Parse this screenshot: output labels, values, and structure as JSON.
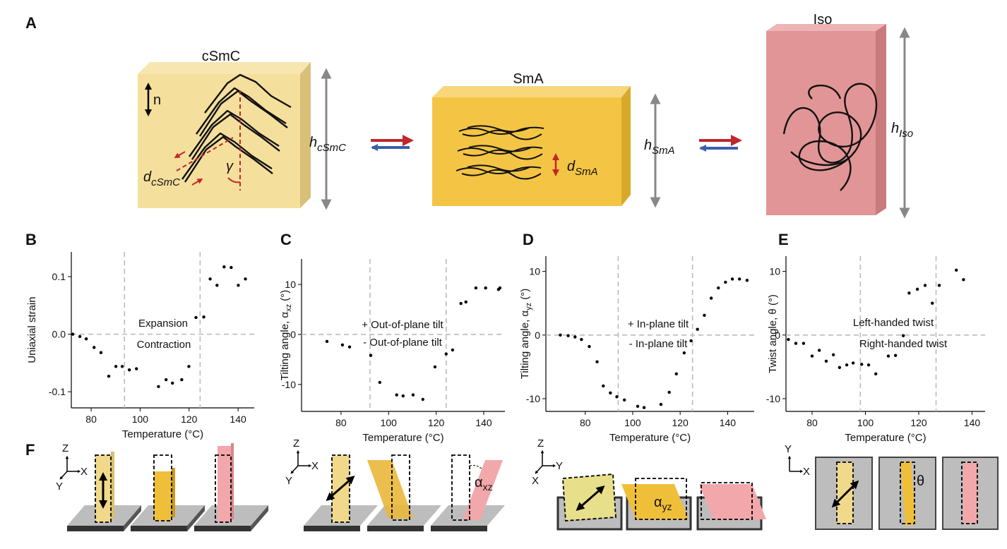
{
  "panel_labels": [
    "A",
    "B",
    "C",
    "D",
    "E",
    "F"
  ],
  "diagram": {
    "csmc": {
      "title": "cSmC",
      "n": "n",
      "gamma": "γ",
      "d": {
        "main": "d",
        "sub": "cSmC"
      },
      "h": {
        "main": "h",
        "sub": "cSmC"
      }
    },
    "sma": {
      "title": "SmA",
      "d": {
        "main": "d",
        "sub": "SmA"
      },
      "h": {
        "main": "h",
        "sub": "SmA"
      }
    },
    "iso": {
      "title": "Iso",
      "h": {
        "main": "h",
        "sub": "Iso"
      }
    }
  },
  "schematics": {
    "f1_axes": [
      "Z",
      "X",
      "Y"
    ],
    "f2_axes": [
      "Z",
      "X",
      "Y"
    ],
    "alpha_xz": {
      "main": "α",
      "sub": "xz"
    },
    "f3_axes": [
      "Z",
      "Y",
      "X"
    ],
    "alpha_yz": {
      "main": "α",
      "sub": "yz"
    },
    "f4_axes": [
      "Y",
      "X"
    ],
    "theta": "θ"
  },
  "chart_data": [
    {
      "type": "scatter",
      "xlabel": "Temperature (°C)",
      "ylabel": {
        "main": "Uniaxial strain"
      },
      "x": [
        72.5,
        75.4,
        78.0,
        81.2,
        84.0,
        87.2,
        90.1,
        92.7,
        95.6,
        98.5,
        107.5,
        110.6,
        113.2,
        117.0,
        119.9,
        122.8,
        126.0,
        128.6,
        131.4,
        134.3,
        137.2,
        140.1,
        143.0
      ],
      "values": [
        0.0,
        -0.004,
        -0.008,
        -0.023,
        -0.032,
        -0.073,
        -0.056,
        -0.056,
        -0.062,
        -0.06,
        -0.091,
        -0.079,
        -0.085,
        -0.079,
        -0.056,
        0.029,
        0.03,
        0.096,
        0.085,
        0.117,
        0.116,
        0.085,
        0.096
      ],
      "xlim": [
        71.9,
        146.6
      ],
      "ylim": [
        -0.128,
        0.143
      ],
      "xticks": [
        80,
        100,
        120,
        140
      ],
      "yticks": [
        -0.1,
        {
          "value": 0,
          "label": "0.0"
        },
        0.1
      ],
      "vlines": [
        93.6,
        124.5
      ],
      "hlines": [
        0
      ],
      "annotations": [
        "Expansion",
        "Contraction"
      ],
      "color": "#000000"
    },
    {
      "type": "scatter",
      "xlabel": "Temperature (°C)",
      "ylabel": {
        "main": "Tilting angle, α",
        "sub": "xz",
        "end": " (°)"
      },
      "x": [
        74.1,
        80.6,
        83.6,
        92.5,
        96.3,
        103.4,
        106.1,
        110.3,
        114.4,
        119.5,
        124.2,
        126.9,
        130.4,
        132.5,
        136.7,
        140.8,
        146.2,
        146.8
      ],
      "values": [
        -1.4,
        -2.1,
        -2.5,
        -4.2,
        -9.6,
        -12.1,
        -12.3,
        -12.1,
        -13.0,
        -6.5,
        -3.9,
        -3.1,
        6.2,
        6.5,
        9.3,
        9.3,
        9.0,
        9.3
      ],
      "xlim": [
        63.4,
        148.9
      ],
      "ylim": [
        -15.4,
        15.1
      ],
      "xticks": [
        80,
        100,
        120,
        140
      ],
      "yticks": [
        -10,
        0,
        10
      ],
      "vlines": [
        92.2,
        124.2
      ],
      "hlines": [
        0
      ],
      "annotations": [
        "+ Out-of-plane tilt",
        "- Out-of-plane tilt"
      ],
      "color": "#000000"
    },
    {
      "type": "scatter",
      "xlabel": "Temperature (°C)",
      "ylabel": {
        "main": "Tilting angle, α",
        "sub": "yz",
        "end": " (°)"
      },
      "x": [
        69.5,
        72.8,
        75.7,
        78.4,
        81.7,
        85.0,
        87.6,
        90.6,
        93.3,
        96.5,
        102.1,
        104.8,
        111.9,
        115.4,
        118.4,
        121.7,
        124.6,
        127.3,
        130.2,
        133.1,
        136.1,
        139.1,
        142.0,
        145.0,
        148.2
      ],
      "values": [
        0,
        -0.1,
        -0.3,
        -0.7,
        -1.8,
        -4.2,
        -8.0,
        -9.1,
        -9.7,
        -10.2,
        -11.2,
        -11.4,
        -10.9,
        -9.0,
        -6.1,
        -2.8,
        -0.9,
        0.9,
        3.1,
        5.8,
        7.4,
        8.3,
        8.8,
        8.8,
        8.6
      ],
      "xlim": [
        63.4,
        151.2
      ],
      "ylim": [
        -12,
        12.4
      ],
      "xticks": [
        80,
        100,
        120,
        140
      ],
      "yticks": [
        -10,
        0,
        10
      ],
      "vlines": [
        93.9,
        125.2
      ],
      "hlines": [
        0
      ],
      "annotations": [
        "+ In-plane tilt",
        "- In-plane tilt"
      ],
      "color": "#000000"
    },
    {
      "type": "scatter",
      "xlabel": "Temperature (°C)",
      "ylabel": {
        "main": "Twist angle, θ (°)"
      },
      "x": [
        71.1,
        73.9,
        76.8,
        80.0,
        82.7,
        85.3,
        88.0,
        90.3,
        93.0,
        95.4,
        98.6,
        101.2,
        103.9,
        108.6,
        111.3,
        114.2,
        116.4,
        119.5,
        122.4,
        125.1,
        127.7,
        134.1,
        136.8
      ],
      "values": [
        -0.7,
        -1.3,
        -1.3,
        -3.3,
        -2.4,
        -4.1,
        -3.1,
        -5.1,
        -4.7,
        -4.4,
        -4.6,
        -4.7,
        -6.1,
        -3.3,
        -3.2,
        -0.1,
        6.6,
        7.2,
        7.8,
        5.0,
        7.8,
        10.2,
        8.7
      ],
      "xlim": [
        70.2,
        144.9
      ],
      "ylim": [
        -12,
        12.4
      ],
      "xticks": [
        80,
        100,
        120,
        140
      ],
      "yticks": [
        -10,
        0,
        10
      ],
      "vlines": [
        98.1,
        126.5
      ],
      "hlines": [
        0
      ],
      "annotations": [
        "Left-handed twist",
        "Right-handed twist"
      ],
      "color": "#000000"
    }
  ]
}
